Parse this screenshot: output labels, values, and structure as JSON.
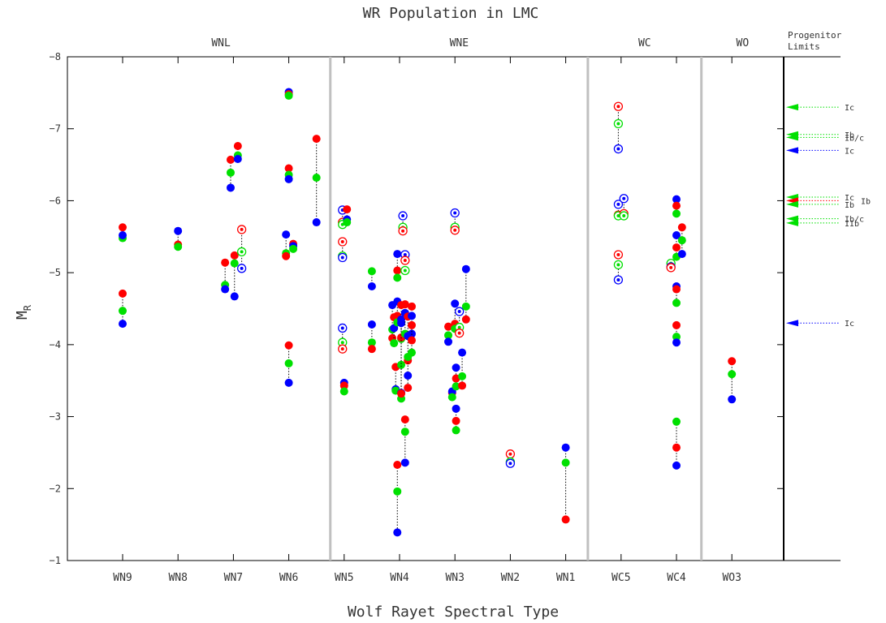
{
  "chart_data": {
    "type": "scatter",
    "title": "WR Population in LMC",
    "xlabel": "Wolf Rayet Spectral Type",
    "ylabel": "M",
    "ylabel_sub": "R",
    "ylim": [
      -1,
      -8
    ],
    "yticks": [
      -8,
      -7,
      -6,
      -5,
      -4,
      -3,
      -2,
      -1
    ],
    "categories": [
      "WN9",
      "WN8",
      "WN7",
      "WN6",
      "WN5",
      "WN4",
      "WN3",
      "WN2",
      "WN1",
      "WC5",
      "WC4",
      "WO3"
    ],
    "groups": [
      {
        "label": "WNL",
        "from": 0,
        "to": 3.75
      },
      {
        "label": "WNE",
        "from": 3.75,
        "to": 8.4
      },
      {
        "label": "WC",
        "from": 8.4,
        "to": 10.45
      },
      {
        "label": "WO",
        "from": 10.45,
        "to": 12.2
      }
    ],
    "dividers": [
      3.75,
      8.4,
      10.45
    ],
    "colors": {
      "red": "#ff0000",
      "green": "#00e000",
      "blue": "#0000ff",
      "connector": "#000000",
      "divider": "#c0c0c0"
    },
    "stars": [
      {
        "x": 0,
        "pts": [
          [
            "r",
            -5.63,
            0
          ],
          [
            "g",
            -5.48,
            0
          ],
          [
            "b",
            -5.52,
            0
          ]
        ]
      },
      {
        "x": 0,
        "pts": [
          [
            "r",
            -4.71,
            0
          ],
          [
            "g",
            -4.47,
            0
          ],
          [
            "b",
            -4.29,
            0
          ]
        ]
      },
      {
        "x": 1,
        "pts": [
          [
            "b",
            -5.58,
            0
          ],
          [
            "r",
            -5.39,
            0
          ],
          [
            "g",
            -5.36,
            0
          ]
        ]
      },
      {
        "x": 1.85,
        "pts": [
          [
            "r",
            -5.14,
            0
          ],
          [
            "g",
            -4.83,
            0
          ],
          [
            "b",
            -4.77,
            0
          ]
        ]
      },
      {
        "x": 1.95,
        "pts": [
          [
            "r",
            -6.57,
            0
          ],
          [
            "g",
            -6.39,
            0
          ],
          [
            "b",
            -6.18,
            0
          ]
        ]
      },
      {
        "x": 2.02,
        "pts": [
          [
            "r",
            -5.24,
            0
          ],
          [
            "g",
            -5.13,
            0
          ],
          [
            "b",
            -4.67,
            0
          ]
        ]
      },
      {
        "x": 2.08,
        "pts": [
          [
            "r",
            -6.76,
            0
          ],
          [
            "g",
            -6.63,
            0
          ],
          [
            "b",
            -6.58,
            0
          ]
        ]
      },
      {
        "x": 2.15,
        "pts": [
          [
            "r",
            -5.6,
            1
          ],
          [
            "g",
            -5.29,
            1
          ],
          [
            "b",
            -5.06,
            1
          ]
        ]
      },
      {
        "x": 2.95,
        "pts": [
          [
            "b",
            -5.53,
            0
          ],
          [
            "g",
            -5.27,
            0
          ],
          [
            "r",
            -5.23,
            0
          ]
        ]
      },
      {
        "x": 3.0,
        "pts": [
          [
            "b",
            -7.51,
            0
          ],
          [
            "r",
            -7.48,
            0
          ],
          [
            "g",
            -7.46,
            0
          ]
        ]
      },
      {
        "x": 3.0,
        "pts": [
          [
            "r",
            -6.45,
            0
          ],
          [
            "g",
            -6.36,
            0
          ],
          [
            "b",
            -6.3,
            0
          ]
        ]
      },
      {
        "x": 3.0,
        "pts": [
          [
            "r",
            -3.99,
            0
          ],
          [
            "g",
            -3.74,
            0
          ],
          [
            "b",
            -3.47,
            0
          ]
        ]
      },
      {
        "x": 3.08,
        "pts": [
          [
            "r",
            -5.4,
            0
          ],
          [
            "b",
            -5.37,
            0
          ],
          [
            "g",
            -5.33,
            0
          ]
        ]
      },
      {
        "x": 3.5,
        "pts": [
          [
            "r",
            -6.86,
            0
          ],
          [
            "g",
            -6.32,
            0
          ],
          [
            "b",
            -5.7,
            0
          ]
        ]
      },
      {
        "x": 3.97,
        "pts": [
          [
            "b",
            -5.87,
            1
          ],
          [
            "r",
            -5.7,
            1
          ],
          [
            "g",
            -5.67,
            1
          ]
        ]
      },
      {
        "x": 3.97,
        "pts": [
          [
            "r",
            -5.43,
            1
          ],
          [
            "g",
            -5.23,
            1
          ],
          [
            "b",
            -5.21,
            1
          ]
        ]
      },
      {
        "x": 3.97,
        "pts": [
          [
            "b",
            -4.23,
            1
          ],
          [
            "g",
            -4.03,
            1
          ],
          [
            "r",
            -3.94,
            1
          ]
        ]
      },
      {
        "x": 4.0,
        "pts": [
          [
            "b",
            -3.47,
            0
          ],
          [
            "r",
            -3.43,
            0
          ],
          [
            "g",
            -3.35,
            0
          ]
        ]
      },
      {
        "x": 4.05,
        "pts": [
          [
            "r",
            -5.88,
            0
          ],
          [
            "b",
            -5.74,
            0
          ],
          [
            "g",
            -5.7,
            0
          ]
        ]
      },
      {
        "x": 4.5,
        "pts": [
          [
            "g",
            -5.02,
            0
          ],
          [
            "b",
            -4.81,
            0
          ]
        ]
      },
      {
        "x": 4.5,
        "pts": [
          [
            "b",
            -4.28,
            0
          ],
          [
            "g",
            -4.03,
            0
          ],
          [
            "r",
            -3.94,
            0
          ]
        ]
      },
      {
        "x": 4.87,
        "pts": [
          [
            "b",
            -4.55,
            0
          ],
          [
            "g",
            -4.21,
            0
          ],
          [
            "r",
            -4.09,
            0
          ]
        ]
      },
      {
        "x": 4.9,
        "pts": [
          [
            "r",
            -4.38,
            0
          ],
          [
            "b",
            -4.23,
            0
          ],
          [
            "g",
            -4.02,
            0
          ]
        ]
      },
      {
        "x": 4.93,
        "pts": [
          [
            "r",
            -3.69,
            0
          ],
          [
            "b",
            -3.38,
            0
          ],
          [
            "g",
            -3.36,
            0
          ]
        ]
      },
      {
        "x": 4.96,
        "pts": [
          [
            "b",
            -5.26,
            0
          ],
          [
            "r",
            -5.03,
            0
          ],
          [
            "g",
            -4.93,
            0
          ]
        ]
      },
      {
        "x": 4.96,
        "pts": [
          [
            "b",
            -4.6,
            0
          ],
          [
            "r",
            -4.4,
            0
          ],
          [
            "g",
            -4.31,
            0
          ]
        ]
      },
      {
        "x": 4.96,
        "pts": [
          [
            "r",
            -2.33,
            0
          ],
          [
            "g",
            -1.96,
            0
          ],
          [
            "b",
            -1.39,
            0
          ]
        ]
      },
      {
        "x": 5.03,
        "pts": [
          [
            "r",
            -4.55,
            0
          ],
          [
            "b",
            -4.35,
            0
          ],
          [
            "g",
            -4.08,
            0
          ]
        ]
      },
      {
        "x": 5.03,
        "pts": [
          [
            "r",
            -4.1,
            0
          ],
          [
            "g",
            -3.72,
            0
          ],
          [
            "b",
            -3.33,
            0
          ]
        ]
      },
      {
        "x": 5.03,
        "pts": [
          [
            "b",
            -4.3,
            0
          ],
          [
            "g",
            -3.25,
            0
          ],
          [
            "r",
            -3.32,
            0
          ]
        ]
      },
      {
        "x": 5.06,
        "pts": [
          [
            "b",
            -5.79,
            1
          ],
          [
            "g",
            -5.63,
            1
          ],
          [
            "r",
            -5.58,
            1
          ]
        ]
      },
      {
        "x": 5.1,
        "pts": [
          [
            "b",
            -5.25,
            1
          ],
          [
            "r",
            -5.17,
            1
          ],
          [
            "g",
            -5.03,
            1
          ]
        ]
      },
      {
        "x": 5.1,
        "pts": [
          [
            "r",
            -4.56,
            0
          ],
          [
            "b",
            -4.44,
            0
          ],
          [
            "g",
            -4.15,
            0
          ]
        ]
      },
      {
        "x": 5.1,
        "pts": [
          [
            "r",
            -2.96,
            0
          ],
          [
            "g",
            -2.79,
            0
          ],
          [
            "b",
            -2.36,
            0
          ]
        ]
      },
      {
        "x": 5.15,
        "pts": [
          [
            "r",
            -4.39,
            0
          ],
          [
            "b",
            -4.12,
            0
          ],
          [
            "r",
            -3.78,
            0
          ]
        ]
      },
      {
        "x": 5.15,
        "pts": [
          [
            "g",
            -3.83,
            0
          ],
          [
            "b",
            -3.57,
            0
          ],
          [
            "r",
            -3.4,
            0
          ]
        ]
      },
      {
        "x": 5.22,
        "pts": [
          [
            "r",
            -4.53,
            0
          ],
          [
            "b",
            -4.4,
            0
          ],
          [
            "b",
            -4.15,
            0
          ]
        ]
      },
      {
        "x": 5.22,
        "pts": [
          [
            "r",
            -4.27,
            0
          ],
          [
            "r",
            -4.06,
            0
          ],
          [
            "g",
            -3.89,
            0
          ]
        ]
      },
      {
        "x": 5.88,
        "pts": [
          [
            "r",
            -4.25,
            0
          ],
          [
            "g",
            -4.13,
            0
          ],
          [
            "b",
            -4.04,
            0
          ]
        ]
      },
      {
        "x": 5.95,
        "pts": [
          [
            "r",
            -3.33,
            0
          ],
          [
            "b",
            -3.35,
            0
          ],
          [
            "g",
            -3.27,
            0
          ]
        ]
      },
      {
        "x": 6.0,
        "pts": [
          [
            "b",
            -4.57,
            0
          ],
          [
            "r",
            -4.29,
            0
          ],
          [
            "g",
            -4.22,
            0
          ]
        ]
      },
      {
        "x": 6.0,
        "pts": [
          [
            "b",
            -5.83,
            1
          ],
          [
            "g",
            -5.63,
            1
          ],
          [
            "r",
            -5.59,
            1
          ]
        ]
      },
      {
        "x": 6.02,
        "pts": [
          [
            "b",
            -3.68,
            0
          ],
          [
            "r",
            -3.53,
            0
          ],
          [
            "g",
            -3.42,
            0
          ]
        ]
      },
      {
        "x": 6.02,
        "pts": [
          [
            "b",
            -3.11,
            0
          ],
          [
            "r",
            -2.94,
            0
          ],
          [
            "g",
            -2.81,
            0
          ]
        ]
      },
      {
        "x": 6.08,
        "pts": [
          [
            "b",
            -4.46,
            1
          ],
          [
            "g",
            -4.24,
            1
          ],
          [
            "r",
            -4.16,
            1
          ]
        ]
      },
      {
        "x": 6.13,
        "pts": [
          [
            "b",
            -3.89,
            0
          ],
          [
            "g",
            -3.56,
            0
          ],
          [
            "r",
            -3.43,
            0
          ]
        ]
      },
      {
        "x": 6.2,
        "pts": [
          [
            "b",
            -5.05,
            0
          ],
          [
            "g",
            -4.53,
            0
          ],
          [
            "r",
            -4.35,
            0
          ]
        ]
      },
      {
        "x": 7.0,
        "pts": [
          [
            "r",
            -2.48,
            1
          ],
          [
            "g",
            -2.37,
            1
          ],
          [
            "b",
            -2.35,
            1
          ]
        ]
      },
      {
        "x": 8.0,
        "pts": [
          [
            "b",
            -2.57,
            0
          ],
          [
            "g",
            -2.36,
            0
          ],
          [
            "r",
            -1.57,
            0
          ]
        ]
      },
      {
        "x": 8.95,
        "pts": [
          [
            "r",
            -7.31,
            1
          ],
          [
            "g",
            -7.07,
            1
          ],
          [
            "b",
            -6.72,
            1
          ]
        ]
      },
      {
        "x": 8.95,
        "pts": [
          [
            "b",
            -5.95,
            1
          ],
          [
            "r",
            -5.8,
            1
          ],
          [
            "g",
            -5.79,
            1
          ]
        ]
      },
      {
        "x": 8.95,
        "pts": [
          [
            "r",
            -5.25,
            1
          ],
          [
            "g",
            -5.11,
            1
          ],
          [
            "b",
            -4.9,
            1
          ]
        ]
      },
      {
        "x": 9.05,
        "pts": [
          [
            "b",
            -6.03,
            1
          ],
          [
            "r",
            -5.82,
            1
          ],
          [
            "g",
            -5.79,
            1
          ]
        ]
      },
      {
        "x": 9.9,
        "pts": [
          [
            "g",
            -5.13,
            1
          ],
          [
            "b",
            -5.08,
            1
          ],
          [
            "r",
            -5.07,
            1
          ]
        ]
      },
      {
        "x": 10.0,
        "pts": [
          [
            "b",
            -6.02,
            0
          ],
          [
            "r",
            -5.93,
            0
          ],
          [
            "g",
            -5.82,
            0
          ]
        ]
      },
      {
        "x": 10.0,
        "pts": [
          [
            "b",
            -5.52,
            0
          ],
          [
            "r",
            -5.35,
            0
          ],
          [
            "g",
            -5.22,
            0
          ]
        ]
      },
      {
        "x": 10.0,
        "pts": [
          [
            "b",
            -4.81,
            0
          ],
          [
            "r",
            -4.77,
            0
          ],
          [
            "g",
            -4.58,
            0
          ]
        ]
      },
      {
        "x": 10.0,
        "pts": [
          [
            "r",
            -4.27,
            0
          ],
          [
            "g",
            -4.11,
            0
          ],
          [
            "b",
            -4.03,
            0
          ]
        ]
      },
      {
        "x": 10.0,
        "pts": [
          [
            "g",
            -2.93,
            0
          ],
          [
            "r",
            -2.57,
            0
          ],
          [
            "b",
            -2.32,
            0
          ]
        ]
      },
      {
        "x": 10.1,
        "pts": [
          [
            "r",
            -5.63,
            0
          ],
          [
            "g",
            -5.45,
            0
          ],
          [
            "b",
            -5.26,
            0
          ]
        ]
      },
      {
        "x": 11.0,
        "pts": [
          [
            "r",
            -3.77,
            0
          ],
          [
            "g",
            -3.59,
            0
          ],
          [
            "b",
            -3.24,
            0
          ]
        ]
      }
    ],
    "progenitor_limits": {
      "title_line1": "Progenitor",
      "title_line2": "Limits",
      "items": [
        {
          "label": "Ic",
          "value": -7.3,
          "color": "g"
        },
        {
          "label": "Ib",
          "value": -6.92,
          "color": "g"
        },
        {
          "label": "Ib/c",
          "value": -6.88,
          "color": "g"
        },
        {
          "label": "Ic",
          "value": -6.7,
          "color": "b"
        },
        {
          "label": "Ic",
          "value": -6.05,
          "color": "g"
        },
        {
          "label": "Ib",
          "value": -6.0,
          "color": "r"
        },
        {
          "label": "Ib",
          "value": -5.95,
          "color": "g"
        },
        {
          "label": "Ib/c",
          "value": -5.75,
          "color": "g"
        },
        {
          "label": "IIb",
          "value": -5.69,
          "color": "g"
        },
        {
          "label": "Ic",
          "value": -4.3,
          "color": "b"
        }
      ]
    }
  }
}
